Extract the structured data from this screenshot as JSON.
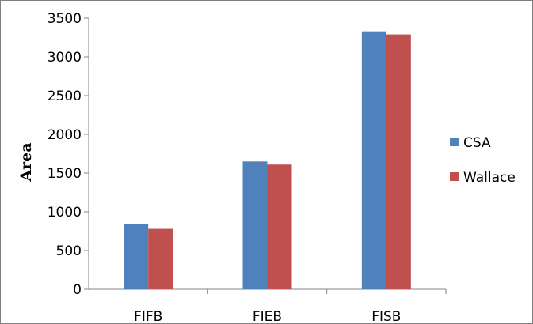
{
  "chart_data": {
    "type": "bar",
    "title": "",
    "xlabel": "",
    "ylabel": "Area",
    "ylim": [
      0,
      3500
    ],
    "yticks": [
      0,
      500,
      1000,
      1500,
      2000,
      2500,
      3000,
      3500
    ],
    "grid": false,
    "legend_position": "right",
    "categories": [
      "FIFB",
      "FIEB",
      "FISB"
    ],
    "series": [
      {
        "name": "CSA",
        "values": [
          840,
          1650,
          3330
        ],
        "color": "#4f81bd"
      },
      {
        "name": "Wallace",
        "values": [
          780,
          1610,
          3290
        ],
        "color": "#c0504d"
      }
    ]
  }
}
